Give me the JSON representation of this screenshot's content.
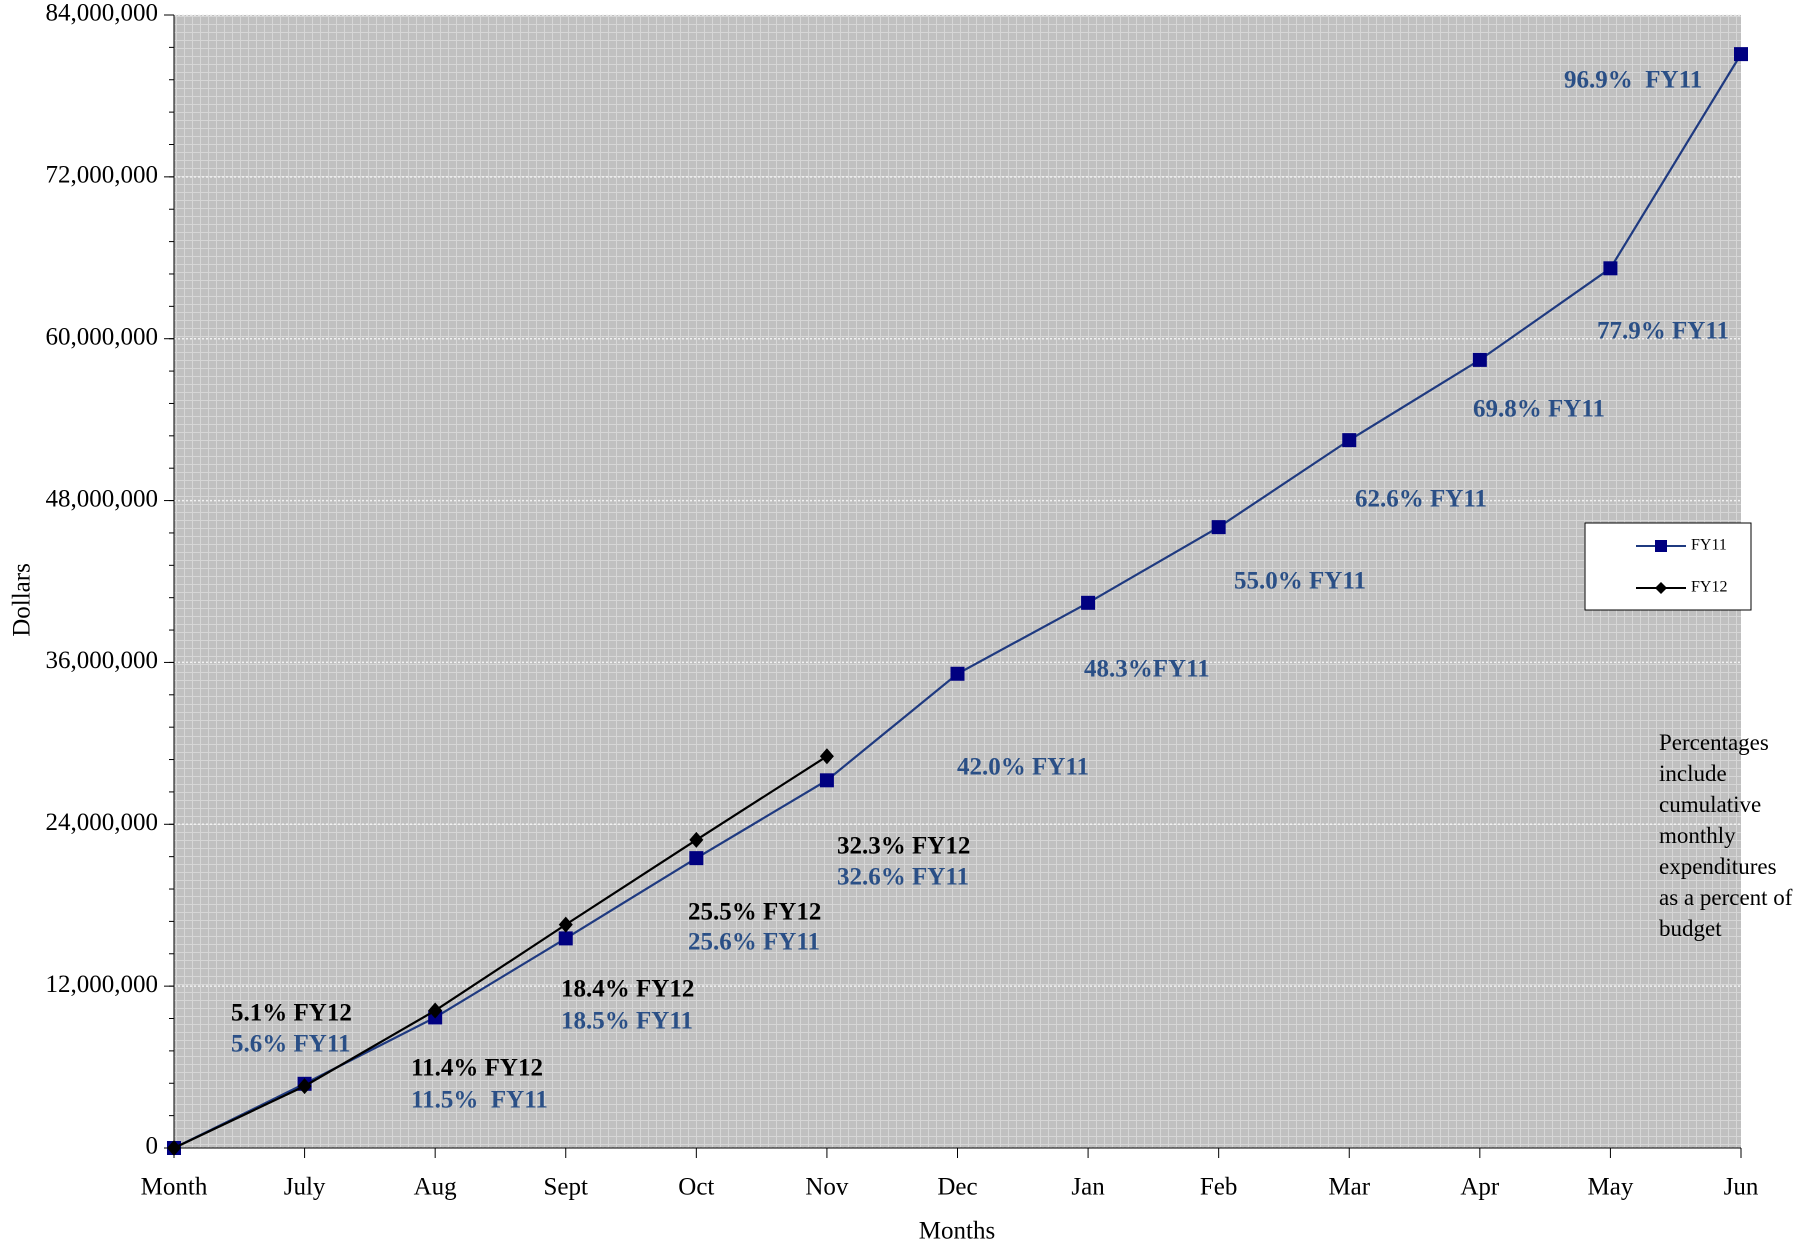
{
  "chart_data": {
    "type": "line",
    "x_label": "Months",
    "y_label": "Dollars",
    "categories": [
      "Month",
      "July",
      "Aug",
      "Sept",
      "Oct",
      "Nov",
      "Dec",
      "Jan",
      "Feb",
      "Mar",
      "Apr",
      "May",
      "Jun"
    ],
    "series": [
      {
        "name": "FY11",
        "color": "#000080",
        "marker": "square",
        "values": [
          0,
          4760000,
          9680000,
          15540000,
          21490000,
          27260000,
          35160000,
          40420000,
          46030000,
          52480000,
          58430000,
          65220000,
          81100000
        ]
      },
      {
        "name": "FY12",
        "color": "#000000",
        "marker": "diamond",
        "values": [
          0,
          4590000,
          10190000,
          16560000,
          22840000,
          29040000,
          null,
          null,
          null,
          null,
          null,
          null,
          null
        ]
      }
    ],
    "ylim": [
      0,
      84000000
    ],
    "yticks": [
      {
        "value": 0,
        "label": "0"
      },
      {
        "value": 12000000,
        "label": "12,000,000"
      },
      {
        "value": 24000000,
        "label": "24,000,000"
      },
      {
        "value": 36000000,
        "label": "36,000,000"
      },
      {
        "value": 48000000,
        "label": "48,000,000"
      },
      {
        "value": 60000000,
        "label": "60,000,000"
      },
      {
        "value": 72000000,
        "label": "72,000,000"
      },
      {
        "value": 84000000,
        "label": "84,000,000"
      }
    ],
    "grid": true,
    "legend_position": "right",
    "annotations": [
      {
        "text": "96.9%  FY11",
        "color": "#2a4f86"
      },
      {
        "text": "77.9% FY11",
        "color": "#2a4f86"
      },
      {
        "text": "69.8% FY11",
        "color": "#2a4f86"
      },
      {
        "text": "62.6% FY11",
        "color": "#2a4f86"
      },
      {
        "text": "55.0% FY11",
        "color": "#2a4f86"
      },
      {
        "text": "48.3%FY11",
        "color": "#2a4f86"
      },
      {
        "text": "42.0% FY11",
        "color": "#2a4f86"
      },
      {
        "text": "32.3% FY12",
        "color": "#000000"
      },
      {
        "text": "32.6% FY11",
        "color": "#2a4f86"
      },
      {
        "text": "25.5% FY12",
        "color": "#000000"
      },
      {
        "text": "25.6% FY11",
        "color": "#2a4f86"
      },
      {
        "text": "18.4% FY12",
        "color": "#000000"
      },
      {
        "text": "18.5% FY11",
        "color": "#2a4f86"
      },
      {
        "text": "5.1% FY12",
        "color": "#000000"
      },
      {
        "text": "5.6% FY11",
        "color": "#2a4f86"
      },
      {
        "text": "11.4% FY12",
        "color": "#000000"
      },
      {
        "text": "11.5%  FY11",
        "color": "#2a4f86"
      }
    ],
    "note": "Percentages include cumulative monthly expenditures as a percent of budget"
  }
}
